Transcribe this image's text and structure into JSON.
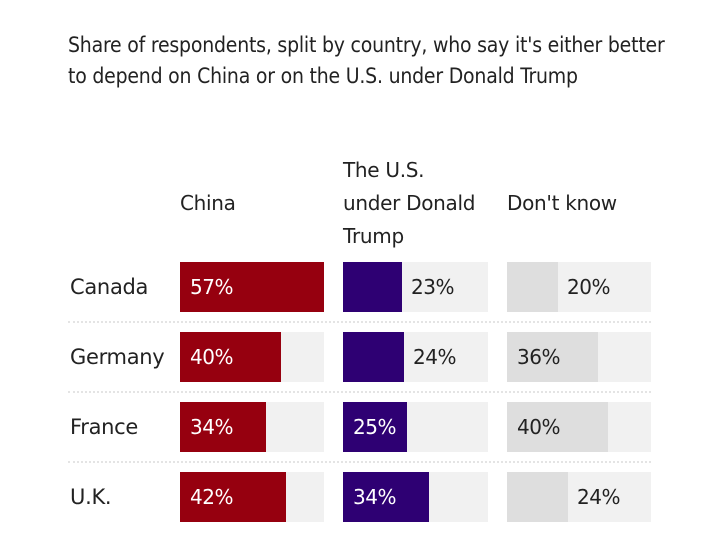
{
  "chart_data": {
    "type": "bar",
    "title": "Share of respondents, split by country, who say it's either better to depend on China or on the U.S. under Donald Trump",
    "columns": [
      "China",
      "The U.S. under Donald Trump",
      "Don't know"
    ],
    "categories": [
      "Canada",
      "Germany",
      "France",
      "U.K."
    ],
    "series": [
      {
        "name": "China",
        "values": [
          57,
          40,
          34,
          42
        ],
        "color": "#96000f",
        "label_suffix": "%"
      },
      {
        "name": "The U.S. under Donald Trump",
        "values": [
          23,
          24,
          25,
          34
        ],
        "color": "#2e0073",
        "label_suffix": "%"
      },
      {
        "name": "Don't know",
        "values": [
          20,
          36,
          40,
          24
        ],
        "color": "#dedede",
        "label_suffix": "%"
      }
    ],
    "scale_max": 57,
    "track_color": "#f1f1f1",
    "xlabel": "",
    "ylabel": ""
  },
  "headers": {
    "china": "China",
    "us_line1": "The U.S.",
    "us_line2": "under Donald",
    "us_line3": "Trump",
    "dontknow": "Don't know"
  }
}
